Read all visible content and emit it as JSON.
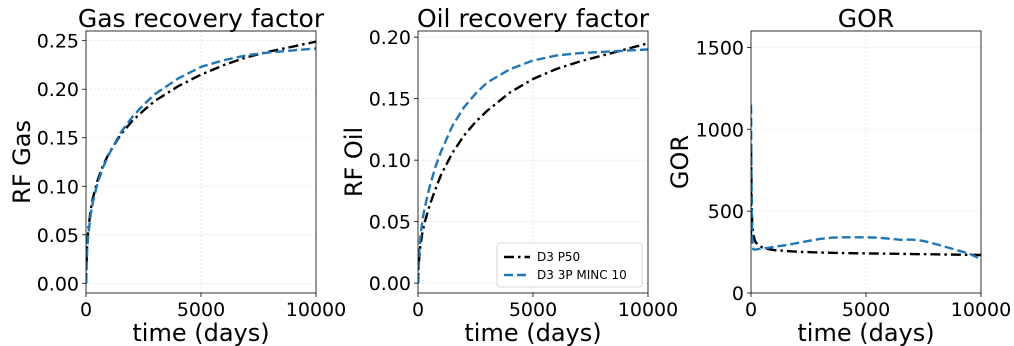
{
  "chart_data": [
    {
      "type": "line",
      "title": "Gas recovery factor",
      "xlabel": "time (days)",
      "ylabel": "RF Gas",
      "xlim": [
        0,
        10000
      ],
      "ylim": [
        -0.01,
        0.26
      ],
      "xticks": [
        0,
        5000,
        10000
      ],
      "xtick_labels": [
        "0",
        "5000",
        "10000"
      ],
      "yticks": [
        0.0,
        0.05,
        0.1,
        0.15,
        0.2,
        0.25
      ],
      "ytick_labels": [
        "0.00",
        "0.05",
        "0.10",
        "0.15",
        "0.20",
        "0.25"
      ],
      "grid": true,
      "series": [
        {
          "name": "D3 P50",
          "color": "#000000",
          "style": "dashdot",
          "x": [
            0,
            50,
            100,
            200,
            300,
            500,
            750,
            1000,
            1500,
            2000,
            2500,
            3000,
            4000,
            5000,
            6000,
            7000,
            8000,
            9000,
            10000
          ],
          "y": [
            0.0,
            0.04,
            0.055,
            0.075,
            0.088,
            0.106,
            0.122,
            0.134,
            0.153,
            0.167,
            0.178,
            0.188,
            0.203,
            0.215,
            0.225,
            0.233,
            0.239,
            0.244,
            0.249
          ]
        },
        {
          "name": "D3 3P MINC 10",
          "color": "#1f77b4",
          "style": "dashed",
          "x": [
            0,
            50,
            100,
            200,
            300,
            500,
            750,
            1000,
            1500,
            2000,
            2500,
            3000,
            4000,
            5000,
            6000,
            7000,
            8000,
            9000,
            10000
          ],
          "y": [
            0.0,
            0.035,
            0.05,
            0.07,
            0.084,
            0.103,
            0.12,
            0.133,
            0.155,
            0.171,
            0.184,
            0.195,
            0.211,
            0.223,
            0.23,
            0.235,
            0.238,
            0.24,
            0.242
          ]
        }
      ]
    },
    {
      "type": "line",
      "title": "Oil recovery factor",
      "xlabel": "time (days)",
      "ylabel": "RF Oil",
      "xlim": [
        0,
        10000
      ],
      "ylim": [
        -0.008,
        0.205
      ],
      "xticks": [
        0,
        5000,
        10000
      ],
      "xtick_labels": [
        "0",
        "5000",
        "10000"
      ],
      "yticks": [
        0.0,
        0.05,
        0.1,
        0.15,
        0.2
      ],
      "ytick_labels": [
        "0.00",
        "0.05",
        "0.10",
        "0.15",
        "0.20"
      ],
      "grid": true,
      "legend": {
        "position": "lower right",
        "entries": [
          "D3 P50",
          "D3 3P MINC 10"
        ]
      },
      "series": [
        {
          "name": "D3 P50",
          "color": "#000000",
          "style": "dashdot",
          "x": [
            0,
            50,
            100,
            200,
            300,
            500,
            750,
            1000,
            1500,
            2000,
            2500,
            3000,
            4000,
            5000,
            6000,
            7000,
            8000,
            9000,
            10000
          ],
          "y": [
            0.0,
            0.02,
            0.03,
            0.042,
            0.05,
            0.063,
            0.076,
            0.088,
            0.106,
            0.12,
            0.131,
            0.14,
            0.155,
            0.166,
            0.174,
            0.18,
            0.185,
            0.19,
            0.195
          ]
        },
        {
          "name": "D3 3P MINC 10",
          "color": "#1f77b4",
          "style": "dashed",
          "x": [
            0,
            50,
            100,
            200,
            300,
            500,
            750,
            1000,
            1500,
            2000,
            2500,
            3000,
            4000,
            5000,
            6000,
            7000,
            8000,
            9000,
            10000
          ],
          "y": [
            0.0,
            0.025,
            0.037,
            0.052,
            0.062,
            0.078,
            0.094,
            0.107,
            0.128,
            0.143,
            0.154,
            0.163,
            0.174,
            0.181,
            0.185,
            0.187,
            0.188,
            0.189,
            0.19
          ]
        }
      ]
    },
    {
      "type": "line",
      "title": "GOR",
      "xlabel": "time (days)",
      "ylabel": "GOR",
      "xlim": [
        0,
        10000
      ],
      "ylim": [
        0,
        1600
      ],
      "xticks": [
        0,
        5000,
        10000
      ],
      "xtick_labels": [
        "0",
        "5000",
        "10000"
      ],
      "yticks": [
        0,
        500,
        1000,
        1500
      ],
      "ytick_labels": [
        "0",
        "500",
        "1000",
        "1500"
      ],
      "grid": true,
      "series": [
        {
          "name": "D3 P50",
          "color": "#000000",
          "style": "dashdot",
          "x": [
            0,
            5,
            10,
            25,
            50,
            100,
            150,
            200,
            300,
            400,
            500,
            750,
            1000,
            2000,
            3000,
            4000,
            5000,
            6000,
            7000,
            8000,
            9000,
            10000
          ],
          "y": [
            320,
            900,
            800,
            600,
            420,
            360,
            330,
            310,
            295,
            285,
            278,
            268,
            262,
            252,
            247,
            244,
            242,
            240,
            238,
            236,
            234,
            232
          ]
        },
        {
          "name": "D3 3P MINC 10",
          "color": "#1f77b4",
          "style": "dashed",
          "x": [
            0,
            5,
            10,
            20,
            30,
            50,
            80,
            100,
            150,
            200,
            300,
            500,
            750,
            1000,
            1500,
            2000,
            2500,
            3000,
            3500,
            4000,
            4500,
            5000,
            5500,
            6000,
            6500,
            7000,
            7500,
            8000,
            8500,
            9000,
            9500,
            10000
          ],
          "y": [
            1150,
            1100,
            900,
            700,
            500,
            350,
            280,
            268,
            265,
            265,
            268,
            272,
            276,
            282,
            292,
            305,
            318,
            330,
            338,
            340,
            340,
            340,
            338,
            332,
            325,
            326,
            318,
            300,
            280,
            260,
            240,
            205
          ]
        }
      ]
    }
  ]
}
